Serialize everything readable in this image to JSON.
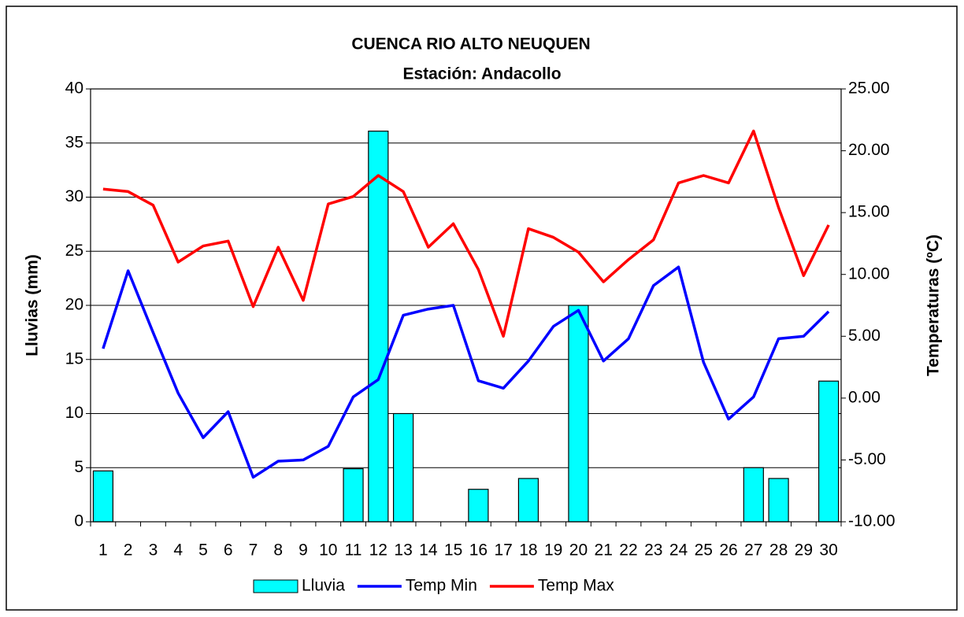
{
  "chart_data": {
    "type": "bar",
    "title": "CUENCA RIO ALTO NEUQUEN",
    "subtitle": "Estación: Andacollo",
    "y_label": "Lluvias (mm)",
    "y2_label": "Temperaturas (ºC)",
    "categories": [
      "1",
      "2",
      "3",
      "4",
      "5",
      "6",
      "7",
      "8",
      "9",
      "10",
      "11",
      "12",
      "13",
      "14",
      "15",
      "16",
      "17",
      "18",
      "19",
      "20",
      "21",
      "22",
      "23",
      "24",
      "25",
      "26",
      "27",
      "28",
      "29",
      "30"
    ],
    "series": [
      {
        "name": "Lluvia",
        "type": "bar",
        "color": "#00ffff",
        "values": [
          4.7,
          0,
          0,
          0,
          0,
          0,
          0,
          0,
          0,
          0,
          4.9,
          36.1,
          10,
          0,
          0,
          3,
          0,
          4,
          0,
          20,
          0,
          0,
          0,
          0,
          0,
          0,
          5,
          4,
          0,
          13
        ]
      },
      {
        "name": "Temp Min",
        "type": "line",
        "axis": "y2",
        "color": "#0000ff",
        "values": [
          4.0,
          10.3,
          5.3,
          0.4,
          -3.2,
          -1.1,
          -6.4,
          -5.1,
          -5.0,
          -3.9,
          0.1,
          1.5,
          6.7,
          7.2,
          7.5,
          1.4,
          0.8,
          3.0,
          5.8,
          7.1,
          3.0,
          4.8,
          9.1,
          10.6,
          2.9,
          -1.7,
          0.1,
          4.8,
          5.0,
          7.0
        ]
      },
      {
        "name": "Temp Max",
        "type": "line",
        "axis": "y2",
        "color": "#ff0000",
        "values": [
          16.9,
          16.7,
          15.6,
          11.0,
          12.3,
          12.7,
          7.4,
          12.2,
          7.9,
          15.7,
          16.3,
          18.0,
          16.7,
          12.2,
          14.1,
          10.4,
          5.0,
          13.7,
          13.0,
          11.8,
          9.4,
          11.2,
          12.8,
          17.4,
          18.0,
          17.4,
          21.6,
          15.4,
          9.9,
          14.0
        ]
      }
    ],
    "ylim": [
      0,
      40
    ],
    "yticks": [
      0,
      5,
      10,
      15,
      20,
      25,
      30,
      35,
      40
    ],
    "y2lim": [
      -10,
      25
    ],
    "y2ticks": [
      {
        "value": -10,
        "label": "-10.00"
      },
      {
        "value": -5,
        "label": "-5.00"
      },
      {
        "value": 0,
        "label": "0.00"
      },
      {
        "value": 5,
        "label": "5.00"
      },
      {
        "value": 10,
        "label": "10.00"
      },
      {
        "value": 15,
        "label": "15.00"
      },
      {
        "value": 20,
        "label": "20.00"
      },
      {
        "value": 25,
        "label": "25.00"
      }
    ],
    "grid": true,
    "legend": "bottom"
  }
}
